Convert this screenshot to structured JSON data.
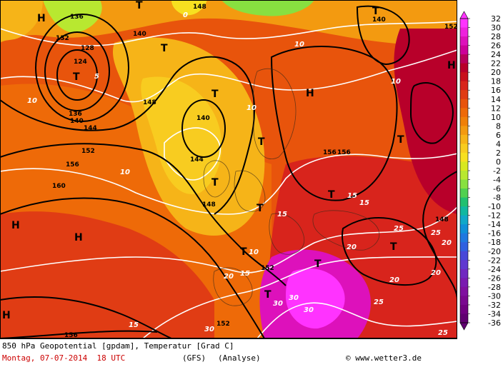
{
  "map": {
    "high_symbol": "H",
    "low_symbol": "T",
    "geopotential_labels": [
      "136",
      "148",
      "140",
      "132",
      "128",
      "124",
      "136",
      "140",
      "144",
      "148",
      "152",
      "156",
      "160",
      "144",
      "140",
      "148",
      "152",
      "156",
      "156",
      "152",
      "140",
      "148",
      "152",
      "156"
    ],
    "temperature_labels": [
      "0",
      "5",
      "10",
      "15",
      "20",
      "25",
      "30"
    ]
  },
  "legend": {
    "levels": [
      "32",
      "30",
      "28",
      "26",
      "24",
      "22",
      "20",
      "18",
      "16",
      "14",
      "12",
      "10",
      "8",
      "6",
      "4",
      "2",
      "0",
      "-2",
      "-4",
      "-6",
      "-8",
      "-10",
      "-12",
      "-14",
      "-16",
      "-18",
      "-20",
      "-22",
      "-24",
      "-26",
      "-28",
      "-30",
      "-32",
      "-34",
      "-36"
    ],
    "colors": [
      "#ff33ff",
      "#ee22dd",
      "#dd11bb",
      "#cc0099",
      "#b8005a",
      "#b8002a",
      "#c8101c",
      "#d8241c",
      "#e03c14",
      "#e8540c",
      "#ee6a08",
      "#f08008",
      "#f39a10",
      "#f6b418",
      "#f8cc20",
      "#f7e020",
      "#d8e820",
      "#b8e830",
      "#88e040",
      "#50d050",
      "#20c070",
      "#10b8a0",
      "#10a8c8",
      "#1090d8",
      "#2078e0",
      "#3060e0",
      "#4848d8",
      "#6038d0",
      "#7028c0",
      "#7a1ab0",
      "#8010a0",
      "#7a0890",
      "#700080",
      "#600070"
    ]
  },
  "footer": {
    "title": "850 hPa Geopotential [gpdam], Temperatur [Grad C]",
    "date": "Montag, 07-07-2014  18 UTC",
    "model": "(GFS)",
    "analysis": "(Analyse)",
    "credit": "© www.wetter3.de"
  },
  "colors": {
    "date": "#cc0000",
    "isotherm": "#ffffff",
    "isohypse": "#000000"
  }
}
